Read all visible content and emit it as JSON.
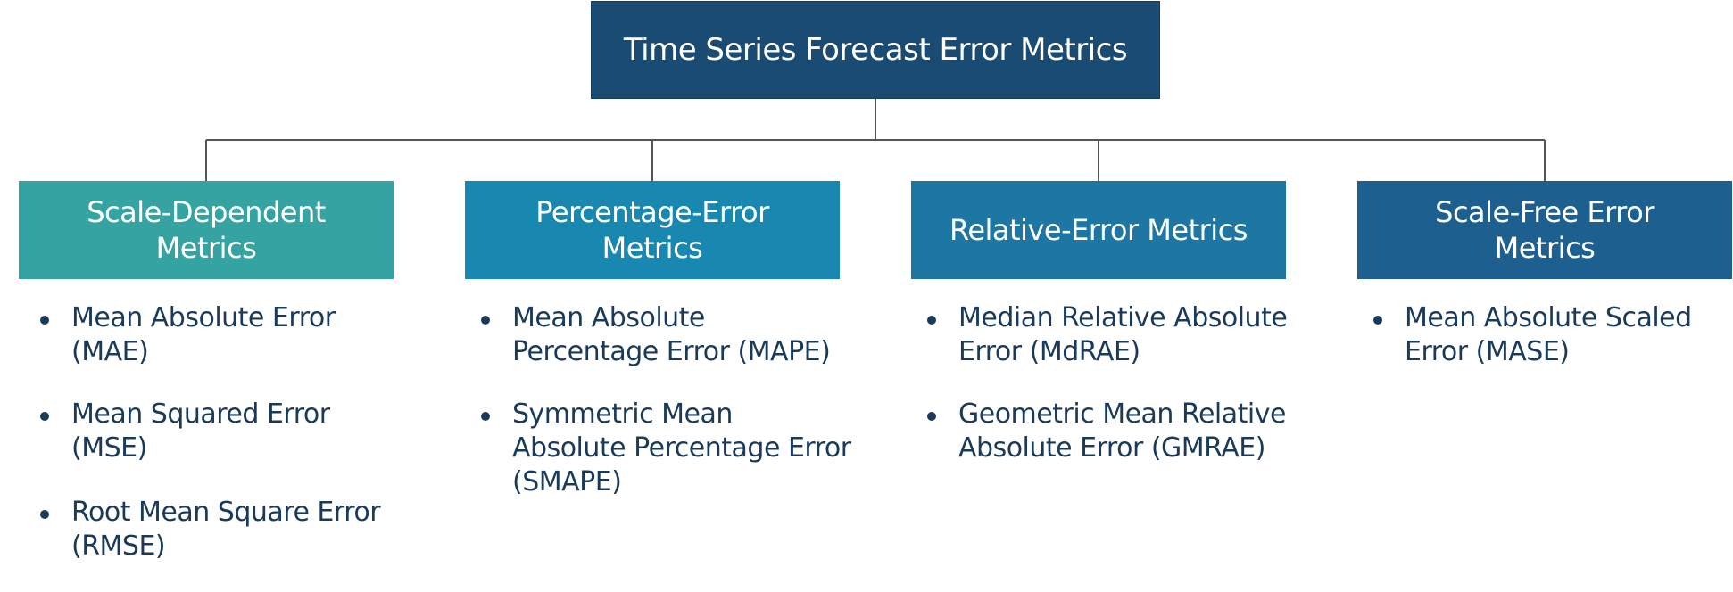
{
  "root": {
    "title": "Time Series Forecast Error Metrics"
  },
  "categories": [
    {
      "title_lines": [
        "Scale-Dependent",
        "Metrics"
      ],
      "color": "#36a3a3",
      "metrics": [
        "Mean Absolute Error (MAE)",
        "Mean Squared Error (MSE)",
        "Root Mean Square Error (RMSE)"
      ]
    },
    {
      "title_lines": [
        "Percentage-Error",
        "Metrics"
      ],
      "color": "#1888b0",
      "metrics": [
        "Mean Absolute Percentage Error (MAPE)",
        "Symmetric Mean Absolute Percentage Error (SMAPE)"
      ]
    },
    {
      "title_lines": [
        "Relative-Error Metrics"
      ],
      "color": "#1e76a3",
      "metrics": [
        "Median Relative Absolute Error (MdRAE)",
        "Geometric Mean Relative Absolute Error (GMRAE)"
      ]
    },
    {
      "title_lines": [
        "Scale-Free Error",
        "Metrics"
      ],
      "color": "#1d5f8f",
      "metrics": [
        "Mean Absolute Scaled Error (MASE)"
      ]
    }
  ],
  "colors": {
    "root": "#1a4b73",
    "connector": "#555555",
    "text": "#1a3a5a"
  }
}
